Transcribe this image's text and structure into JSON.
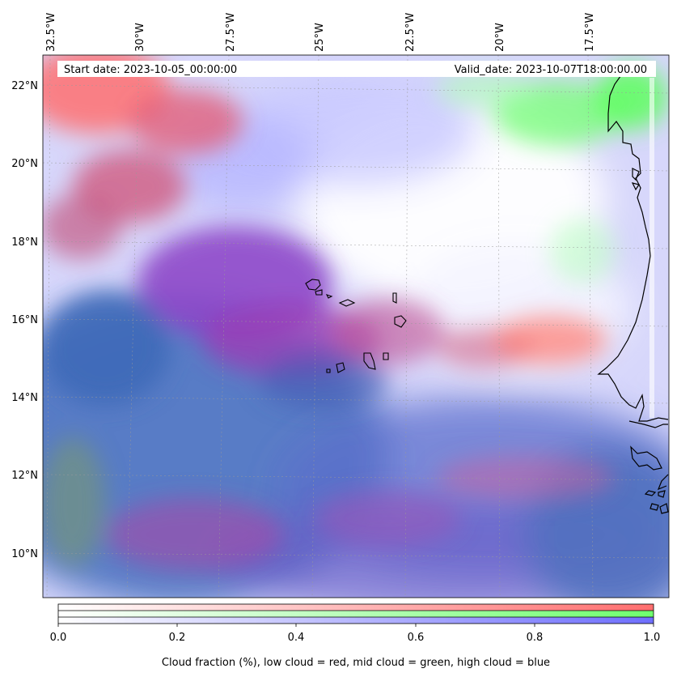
{
  "header": {
    "start_label": "Start date: 2023-10-05_00:00:00",
    "valid_label": "Valid_date: 2023-10-07T18:00:00.00"
  },
  "axes": {
    "lon_labels": [
      "32.5°W",
      "30°W",
      "27.5°W",
      "25°W",
      "22.5°W",
      "20°W",
      "17.5°W"
    ],
    "lat_labels": [
      "22°N",
      "20°N",
      "18°N",
      "16°N",
      "14°N",
      "12°N",
      "10°N"
    ]
  },
  "colorbar": {
    "ticks": [
      "0.0",
      "0.2",
      "0.4",
      "0.6",
      "0.8",
      "1.0"
    ],
    "label": "Cloud fraction (%), low cloud = red, mid cloud = green, high cloud = blue",
    "colors": {
      "low": "#ff6f6f",
      "mid": "#6fff6f",
      "high": "#6f6fff"
    }
  }
}
